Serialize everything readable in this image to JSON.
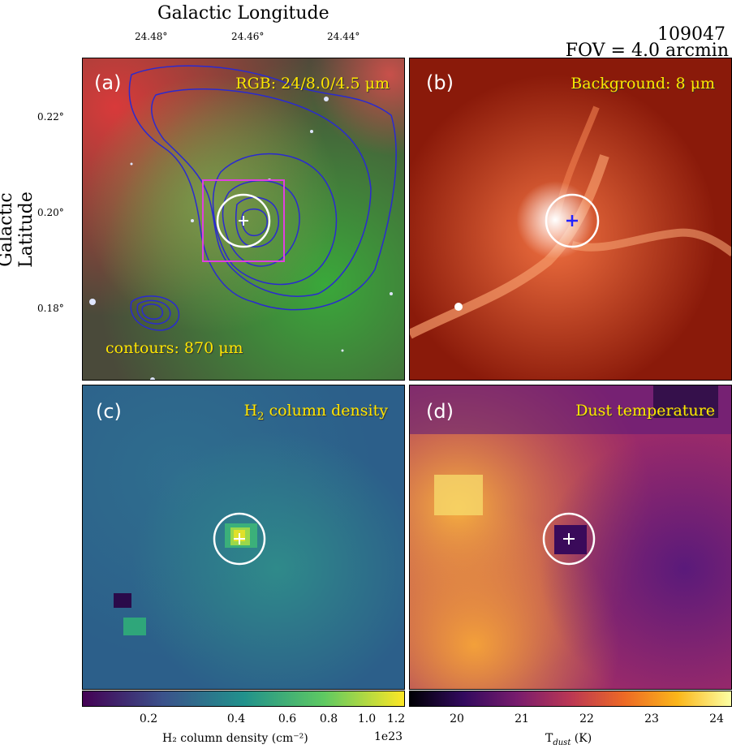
{
  "header": {
    "x_axis_title": "Galactic Longitude",
    "y_axis_title": "Galactic Latitude",
    "source_id": "109047",
    "fov": "FOV = 4.0 arcmin"
  },
  "panels": {
    "a": {
      "tag": "(a)",
      "label": "RGB: 24/8.0/4.5 μm",
      "contour_label": "contours: 870 μm"
    },
    "b": {
      "tag": "(b)",
      "label": "Background: 8 μm"
    },
    "c": {
      "tag": "(c)",
      "label_main": "H",
      "label_sub": "2",
      "label_rest": " column density"
    },
    "d": {
      "tag": "(d)",
      "label": "Dust temperature"
    }
  },
  "colorbars": {
    "h2": {
      "label": "H₂ column density (cm⁻²)",
      "offset": "1e23",
      "ticks": [
        "0.2",
        "0.4",
        "0.6",
        "0.8",
        "1.0",
        "1.2"
      ],
      "tick_values": [
        0.2,
        0.4,
        0.6,
        0.8,
        1.0,
        1.2
      ]
    },
    "tdust": {
      "label": "T",
      "label_sub": "dust",
      "label_unit": " (K)",
      "ticks": [
        "20",
        "21",
        "22",
        "23",
        "24"
      ],
      "tick_values": [
        20,
        21,
        22,
        23,
        24
      ]
    }
  },
  "chart_data": {
    "type": "heatmap",
    "x_ticks": [
      "24.48°",
      "24.46°",
      "24.44°"
    ],
    "x_tick_values": [
      24.48,
      24.46,
      24.44
    ],
    "y_ticks": [
      "0.22°",
      "0.20°",
      "0.18°"
    ],
    "y_tick_values": [
      0.22,
      0.2,
      0.18
    ],
    "colors": {
      "contour": "#2a2ad0",
      "box": "#e040e0",
      "label": "#ffe600",
      "cross_b": "#2222ff"
    }
  }
}
